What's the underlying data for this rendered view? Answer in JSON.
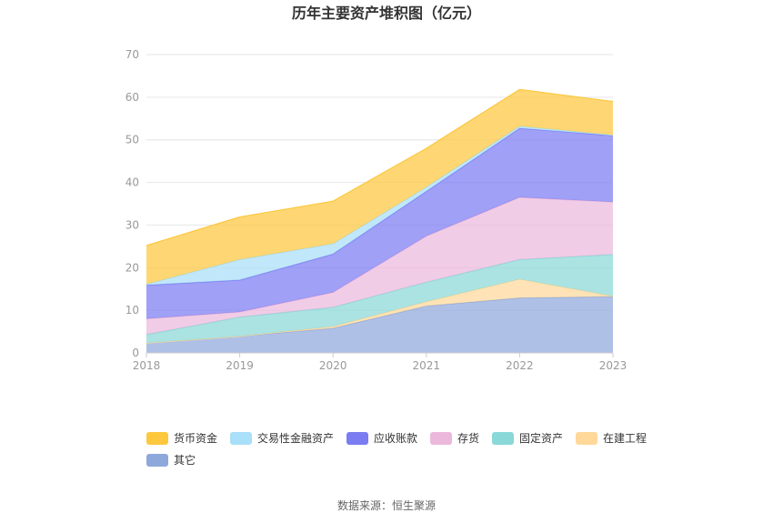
{
  "chart_data": {
    "type": "area",
    "stacked": true,
    "title": "历年主要资产堆积图（亿元）",
    "x": [
      "2018",
      "2019",
      "2020",
      "2021",
      "2022",
      "2023"
    ],
    "ylim": [
      0,
      70
    ],
    "yticks": [
      0,
      10,
      20,
      30,
      40,
      50,
      60,
      70
    ],
    "grid": true,
    "legend_position": "bottom",
    "series": [
      {
        "name": "其它",
        "color": "#8fa8dc",
        "values": [
          2.3,
          3.9,
          5.8,
          11.0,
          12.9,
          13.2
        ]
      },
      {
        "name": "在建工程",
        "color": "#ffd89a",
        "values": [
          0.0,
          0.0,
          0.4,
          1.0,
          4.4,
          0.1
        ]
      },
      {
        "name": "固定资产",
        "color": "#8ad8d8",
        "values": [
          2.0,
          4.5,
          4.5,
          4.6,
          4.6,
          9.8
        ]
      },
      {
        "name": "存货",
        "color": "#ebb8dc",
        "values": [
          3.7,
          1.2,
          3.5,
          10.8,
          14.6,
          12.3
        ]
      },
      {
        "name": "应收账款",
        "color": "#7a7cf2",
        "values": [
          7.9,
          7.5,
          9.0,
          10.5,
          16.2,
          15.6
        ]
      },
      {
        "name": "交易性金融资产",
        "color": "#a9dff8",
        "values": [
          0.2,
          4.8,
          2.4,
          1.0,
          0.5,
          0.1
        ]
      },
      {
        "name": "货币资金",
        "color": "#fdc83e",
        "values": [
          9.1,
          10.0,
          10.0,
          9.1,
          8.6,
          7.9
        ]
      }
    ],
    "legend_order": [
      "货币资金",
      "交易性金融资产",
      "应收账款",
      "存货",
      "固定资产",
      "在建工程",
      "其它"
    ]
  },
  "source_text": "数据来源：恒生聚源"
}
